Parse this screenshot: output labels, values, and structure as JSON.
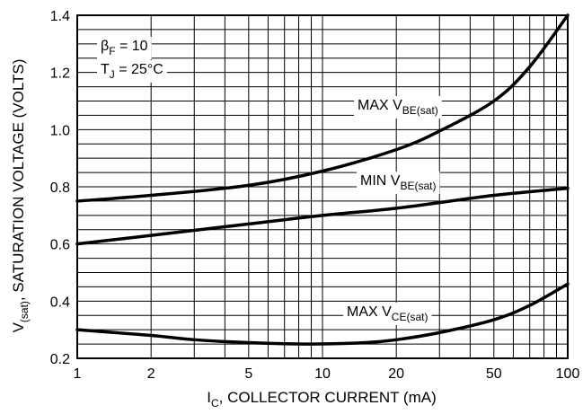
{
  "chart_data": {
    "type": "line",
    "x_scale": "log",
    "xlim": [
      1,
      100
    ],
    "ylim": [
      0.2,
      1.4
    ],
    "grid": true,
    "x_ticks": [
      "1",
      "2",
      "5",
      "10",
      "20",
      "50",
      "100"
    ],
    "y_ticks": [
      "0.2",
      "0.4",
      "0.6",
      "0.8",
      "1.0",
      "1.2",
      "1.4"
    ],
    "xlabel": {
      "main": "I",
      "sub": "C",
      "rest": ", COLLECTOR CURRENT (mA)"
    },
    "ylabel": {
      "main": "V",
      "sub": "(sat)",
      "rest": ", SATURATION VOLTAGE (VOLTS)"
    },
    "conditions": [
      {
        "main": "β",
        "sub": "F",
        "rest": " = 10"
      },
      {
        "main": "T",
        "sub": "J",
        "rest": " = 25°C"
      }
    ],
    "series": [
      {
        "name": "MAX VBE(sat)",
        "label": {
          "main": "MAX V",
          "sub": "BE(sat)"
        },
        "x": [
          1,
          2,
          5,
          10,
          20,
          30,
          50,
          70,
          100
        ],
        "y": [
          0.75,
          0.77,
          0.805,
          0.855,
          0.93,
          0.995,
          1.1,
          1.22,
          1.4
        ]
      },
      {
        "name": "MIN VBE(sat)",
        "label": {
          "main": "MIN V",
          "sub": "BE(sat)"
        },
        "x": [
          1,
          2,
          5,
          10,
          20,
          50,
          100
        ],
        "y": [
          0.6,
          0.63,
          0.67,
          0.7,
          0.725,
          0.77,
          0.795
        ]
      },
      {
        "name": "MAX VCE(sat)",
        "label": {
          "main": "MAX V",
          "sub": "CE(sat)"
        },
        "x": [
          1,
          2,
          3,
          5,
          9,
          15,
          20,
          30,
          50,
          70,
          100
        ],
        "y": [
          0.3,
          0.28,
          0.265,
          0.255,
          0.25,
          0.255,
          0.265,
          0.29,
          0.335,
          0.385,
          0.46
        ]
      }
    ]
  }
}
